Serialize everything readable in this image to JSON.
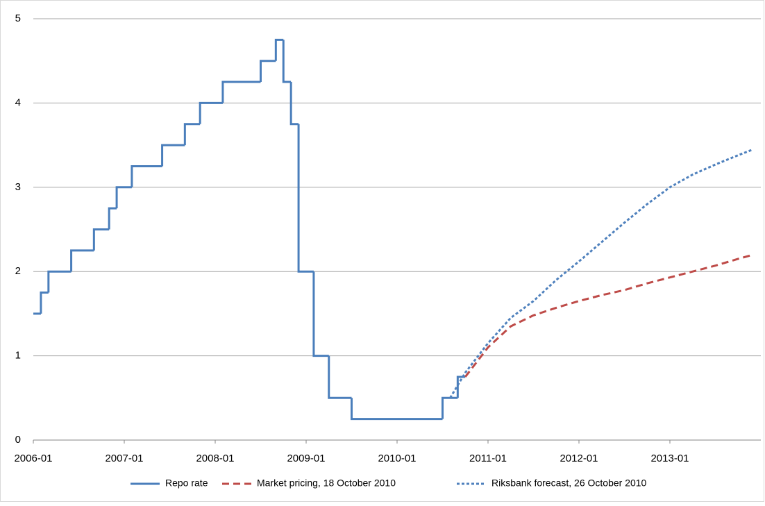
{
  "chart_data": {
    "type": "line",
    "xlim": [
      "2006-01",
      "2014-01"
    ],
    "xticks": [
      "2006-01",
      "2007-01",
      "2008-01",
      "2009-01",
      "2010-01",
      "2011-01",
      "2012-01",
      "2013-01"
    ],
    "ylim": [
      0,
      5
    ],
    "yticks": [
      0,
      1,
      2,
      3,
      4,
      5
    ],
    "grid": true,
    "legend": "bottom",
    "series": [
      {
        "name": "Repo rate",
        "color": "#4a7ebb",
        "dash": "solid",
        "step": true,
        "x": [
          "2006-01",
          "2006-02",
          "2006-03",
          "2006-06",
          "2006-09",
          "2006-11",
          "2006-12",
          "2007-02",
          "2007-06",
          "2007-09",
          "2007-11",
          "2008-02",
          "2008-07",
          "2008-09",
          "2008-10",
          "2008-11",
          "2008-12",
          "2009-02",
          "2009-04",
          "2009-07",
          "2010-07",
          "2010-09",
          "2010-10"
        ],
        "values": [
          1.5,
          1.75,
          2.0,
          2.25,
          2.5,
          2.75,
          3.0,
          3.25,
          3.5,
          3.75,
          4.0,
          4.25,
          4.5,
          4.75,
          4.25,
          3.75,
          2.0,
          1.0,
          0.5,
          0.25,
          0.5,
          0.75,
          0.75
        ]
      },
      {
        "name": "Market pricing, 18 October 2010",
        "color": "#be4b48",
        "dash": "dashed",
        "step": false,
        "x": [
          "2010-10",
          "2011-01",
          "2011-04",
          "2011-07",
          "2011-10",
          "2012-01",
          "2012-04",
          "2012-07",
          "2012-10",
          "2013-01",
          "2013-04",
          "2013-07",
          "2013-10",
          "2013-12"
        ],
        "values": [
          0.75,
          1.1,
          1.35,
          1.48,
          1.57,
          1.65,
          1.72,
          1.78,
          1.86,
          1.93,
          2.0,
          2.07,
          2.15,
          2.2
        ]
      },
      {
        "name": "Riksbank forecast, 26 October 2010",
        "color": "#4f81bd",
        "dash": "dotted",
        "step": false,
        "x": [
          "2010-08",
          "2010-10",
          "2011-01",
          "2011-04",
          "2011-07",
          "2011-10",
          "2012-01",
          "2012-04",
          "2012-07",
          "2012-10",
          "2013-01",
          "2013-04",
          "2013-07",
          "2013-10",
          "2013-12"
        ],
        "values": [
          0.5,
          0.8,
          1.15,
          1.45,
          1.65,
          1.9,
          2.12,
          2.35,
          2.58,
          2.8,
          3.0,
          3.15,
          3.27,
          3.38,
          3.45
        ]
      }
    ]
  }
}
